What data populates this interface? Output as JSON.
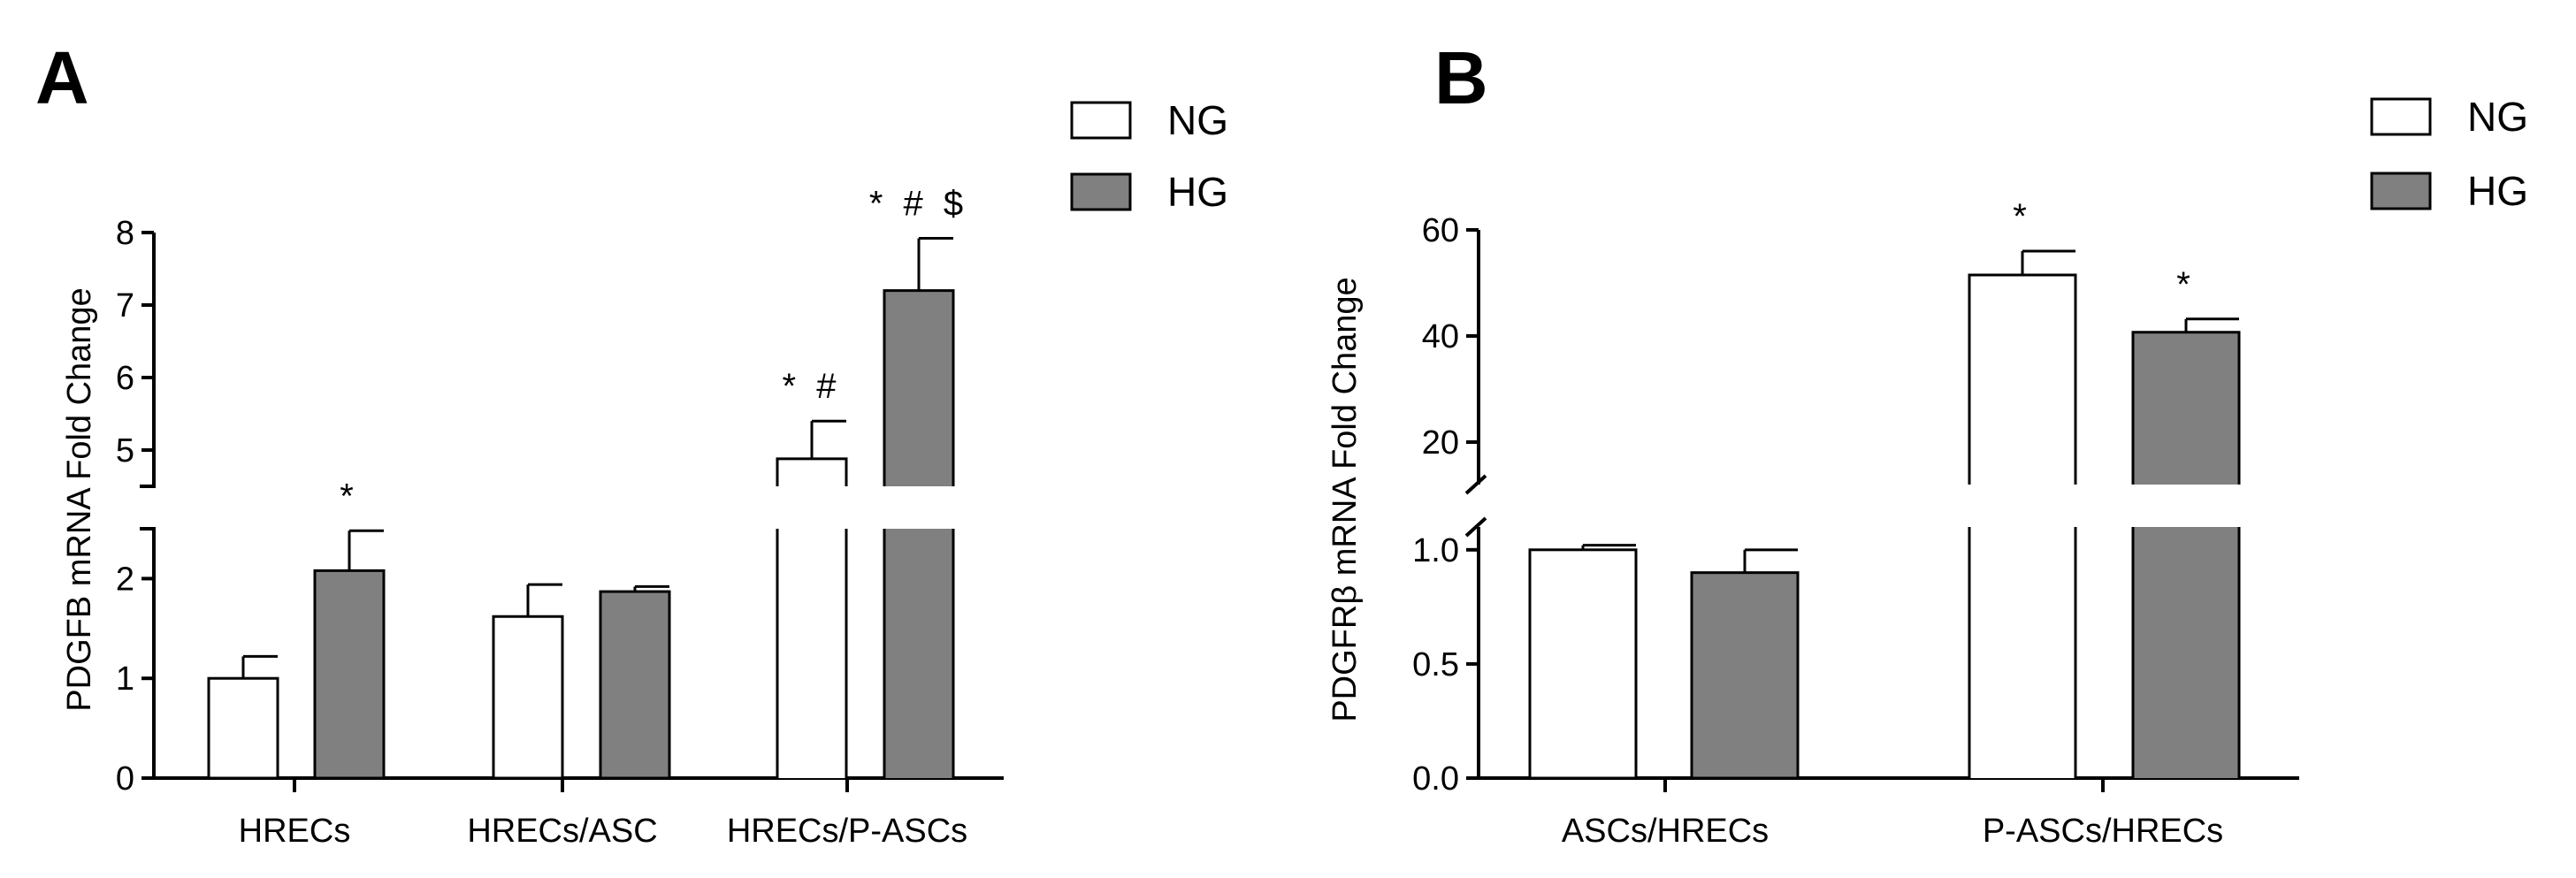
{
  "colors": {
    "NG": "#ffffff",
    "HG": "#808080",
    "stroke": "#000000"
  },
  "legend": {
    "NG": "NG",
    "HG": "HG"
  },
  "chart_data": [
    {
      "panel": "A",
      "type": "bar",
      "ylabel": "PDGFB mRNA Fold Change",
      "categories": [
        "HRECs",
        "HRECs/ASC",
        "HRECs/P-ASCs"
      ],
      "series": [
        {
          "name": "NG",
          "values": [
            1.0,
            1.62,
            4.88
          ],
          "errors": [
            0.22,
            0.32,
            0.52
          ]
        },
        {
          "name": "HG",
          "values": [
            2.08,
            1.87,
            7.2
          ],
          "errors": [
            0.4,
            0.05,
            0.72
          ]
        }
      ],
      "annotations": [
        {
          "category": 0,
          "series": 1,
          "text": "*"
        },
        {
          "category": 2,
          "series": 0,
          "text": "*#"
        },
        {
          "category": 2,
          "series": 1,
          "text": "*#$"
        }
      ],
      "y_broken": true,
      "y_lower": {
        "range": [
          0,
          2.5
        ],
        "ticks": [
          "0",
          "1",
          "2"
        ]
      },
      "y_upper": {
        "range": [
          4.5,
          8
        ],
        "ticks": [
          "5",
          "6",
          "7",
          "8"
        ]
      },
      "legend_position": "top-right",
      "grid": false
    },
    {
      "panel": "B",
      "type": "bar",
      "ylabel": "PDGFRβ mRNA Fold Change",
      "categories": [
        "ASCs/HRECs",
        "P-ASCs/HRECs"
      ],
      "series": [
        {
          "name": "NG",
          "values": [
            1.0,
            51.5
          ],
          "errors": [
            0.02,
            4.5
          ]
        },
        {
          "name": "HG",
          "values": [
            0.9,
            40.7
          ],
          "errors": [
            0.1,
            2.5
          ]
        }
      ],
      "annotations": [
        {
          "category": 1,
          "series": 0,
          "text": "*"
        },
        {
          "category": 1,
          "series": 1,
          "text": "*"
        }
      ],
      "y_broken": true,
      "y_lower": {
        "range": [
          0,
          1.1
        ],
        "ticks": [
          "0.0",
          "0.5",
          "1.0"
        ]
      },
      "y_upper": {
        "range": [
          12,
          60
        ],
        "ticks": [
          "20",
          "40",
          "60"
        ]
      },
      "legend_position": "top-right",
      "grid": false
    }
  ]
}
